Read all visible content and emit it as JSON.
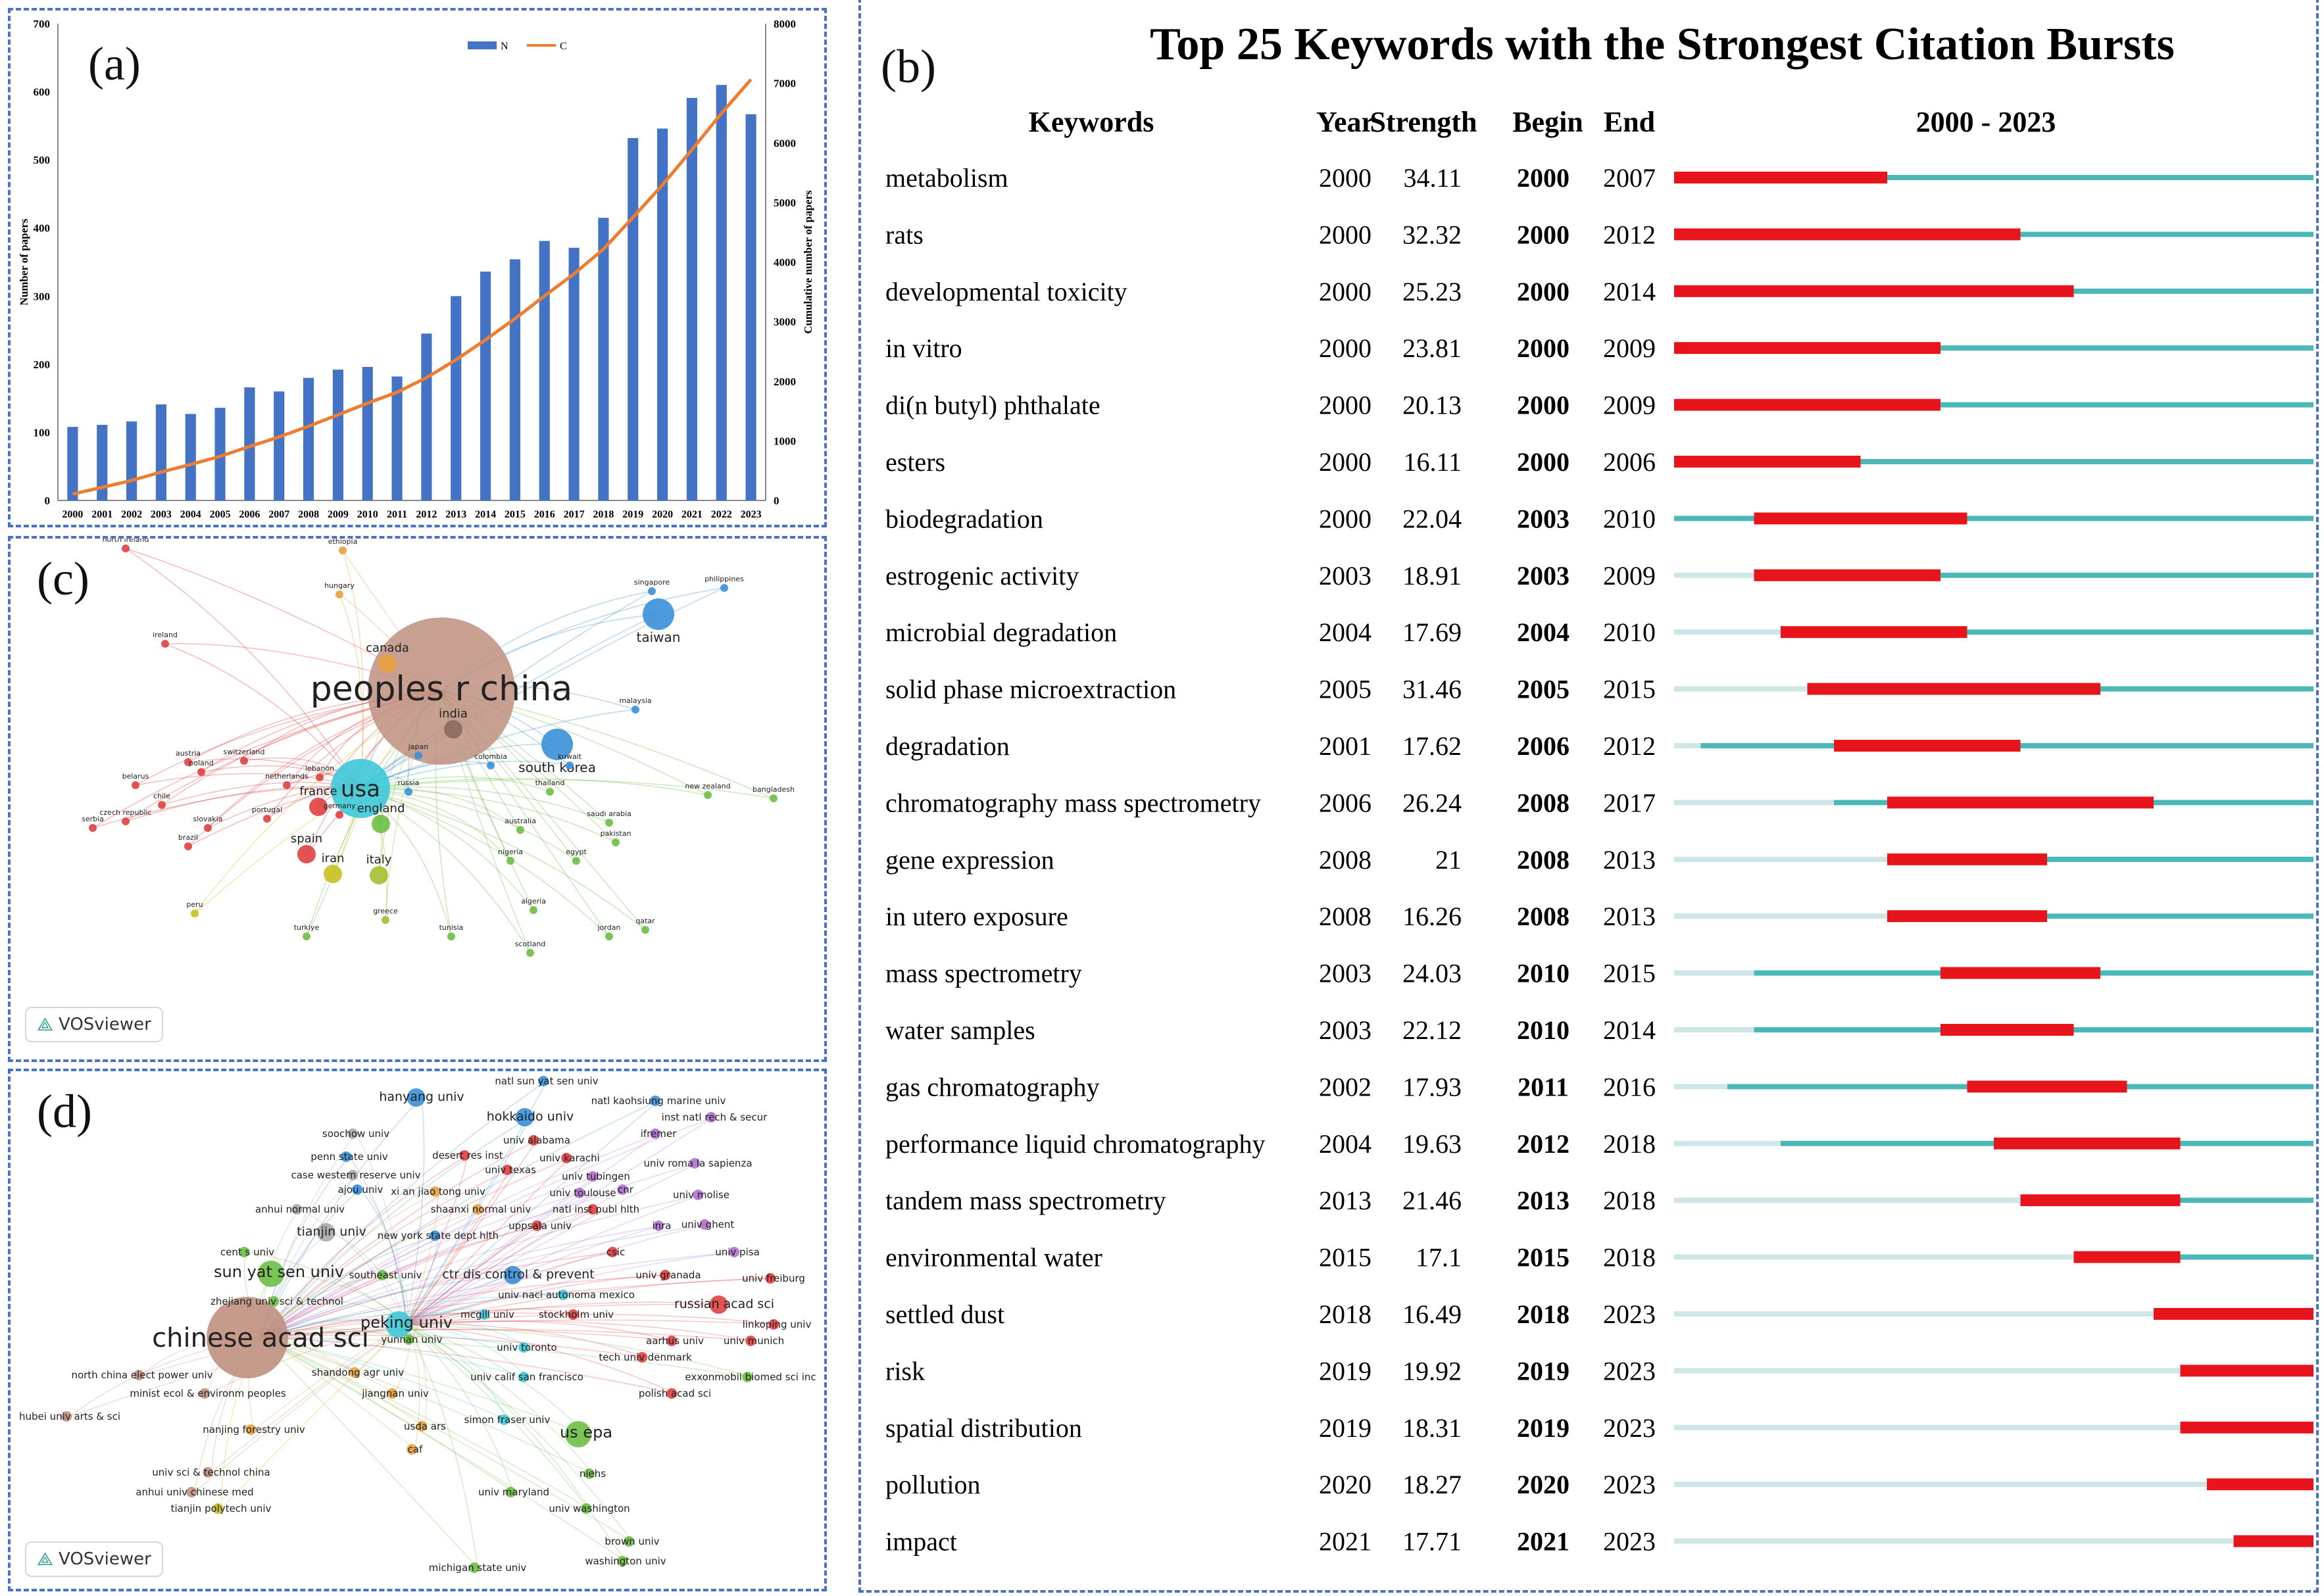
{
  "panels": {
    "a": {
      "label": "(a)"
    },
    "b": {
      "label": "(b)"
    },
    "c": {
      "label": "(c)",
      "badge": "VOSviewer"
    },
    "d": {
      "label": "(d)",
      "badge": "VOSviewer"
    }
  },
  "chart_data": [
    {
      "type": "bar+line",
      "panel": "a",
      "categories": [
        "2000",
        "2001",
        "2002",
        "2003",
        "2004",
        "2005",
        "2006",
        "2007",
        "2008",
        "2009",
        "2010",
        "2011",
        "2012",
        "2013",
        "2014",
        "2015",
        "2016",
        "2017",
        "2018",
        "2019",
        "2020",
        "2021",
        "2022",
        "2023"
      ],
      "series": [
        {
          "name": "N",
          "type": "bar",
          "axis": "left",
          "color": "#4472c4",
          "values": [
            108,
            111,
            116,
            141,
            127,
            136,
            166,
            160,
            180,
            192,
            196,
            182,
            245,
            300,
            336,
            354,
            381,
            371,
            415,
            532,
            546,
            591,
            610,
            567
          ]
        },
        {
          "name": "C",
          "type": "line",
          "axis": "right",
          "color": "#ed7d31",
          "values": [
            108,
            219,
            335,
            476,
            603,
            739,
            905,
            1065,
            1245,
            1437,
            1633,
            1815,
            2060,
            2360,
            2696,
            3050,
            3431,
            3802,
            4217,
            4749,
            5295,
            5886,
            6496,
            7063
          ]
        }
      ],
      "ylabel_left": "Number of papers",
      "ylabel_right": "Cumulative number of papers",
      "ylim_left": [
        0,
        700
      ],
      "ylim_right": [
        0,
        8000
      ],
      "yticks_left": [
        "0",
        "100",
        "200",
        "300",
        "400",
        "500",
        "600",
        "700"
      ],
      "yticks_right": [
        "0",
        "1000",
        "2000",
        "3000",
        "4000",
        "5000",
        "6000",
        "7000",
        "8000"
      ],
      "legend": [
        "N",
        "C"
      ],
      "legend_position": "top-right"
    },
    {
      "type": "table",
      "panel": "b",
      "title": "Top 25 Keywords with the Strongest Citation Bursts",
      "headers": {
        "keyword": "Keywords",
        "year": "Year",
        "strength": "Strength",
        "begin": "Begin",
        "end": "End",
        "range": "2000 - 2023"
      },
      "range_start": 2000,
      "range_end": 2023,
      "rows": [
        {
          "keyword": "metabolism",
          "year": "2000",
          "strength": "34.11",
          "begin": "2000",
          "end": "2007"
        },
        {
          "keyword": "rats",
          "year": "2000",
          "strength": "32.32",
          "begin": "2000",
          "end": "2012"
        },
        {
          "keyword": "developmental toxicity",
          "year": "2000",
          "strength": "25.23",
          "begin": "2000",
          "end": "2014"
        },
        {
          "keyword": "in vitro",
          "year": "2000",
          "strength": "23.81",
          "begin": "2000",
          "end": "2009"
        },
        {
          "keyword": "di(n butyl) phthalate",
          "year": "2000",
          "strength": "20.13",
          "begin": "2000",
          "end": "2009"
        },
        {
          "keyword": "esters",
          "year": "2000",
          "strength": "16.11",
          "begin": "2000",
          "end": "2006"
        },
        {
          "keyword": "biodegradation",
          "year": "2000",
          "strength": "22.04",
          "begin": "2003",
          "end": "2010"
        },
        {
          "keyword": "estrogenic activity",
          "year": "2003",
          "strength": "18.91",
          "begin": "2003",
          "end": "2009"
        },
        {
          "keyword": "microbial degradation",
          "year": "2004",
          "strength": "17.69",
          "begin": "2004",
          "end": "2010"
        },
        {
          "keyword": "solid phase microextraction",
          "year": "2005",
          "strength": "31.46",
          "begin": "2005",
          "end": "2015"
        },
        {
          "keyword": "degradation",
          "year": "2001",
          "strength": "17.62",
          "begin": "2006",
          "end": "2012"
        },
        {
          "keyword": "chromatography mass spectrometry",
          "year": "2006",
          "strength": "26.24",
          "begin": "2008",
          "end": "2017"
        },
        {
          "keyword": "gene expression",
          "year": "2008",
          "strength": "21",
          "begin": "2008",
          "end": "2013"
        },
        {
          "keyword": "in utero exposure",
          "year": "2008",
          "strength": "16.26",
          "begin": "2008",
          "end": "2013"
        },
        {
          "keyword": "mass spectrometry",
          "year": "2003",
          "strength": "24.03",
          "begin": "2010",
          "end": "2015"
        },
        {
          "keyword": "water samples",
          "year": "2003",
          "strength": "22.12",
          "begin": "2010",
          "end": "2014"
        },
        {
          "keyword": "gas chromatography",
          "year": "2002",
          "strength": "17.93",
          "begin": "2011",
          "end": "2016"
        },
        {
          "keyword": "performance liquid chromatography",
          "year": "2004",
          "strength": "19.63",
          "begin": "2012",
          "end": "2018"
        },
        {
          "keyword": "tandem mass spectrometry",
          "year": "2013",
          "strength": "21.46",
          "begin": "2013",
          "end": "2018"
        },
        {
          "keyword": "environmental water",
          "year": "2015",
          "strength": "17.1",
          "begin": "2015",
          "end": "2018"
        },
        {
          "keyword": "settled dust",
          "year": "2018",
          "strength": "16.49",
          "begin": "2018",
          "end": "2023"
        },
        {
          "keyword": "risk",
          "year": "2019",
          "strength": "19.92",
          "begin": "2019",
          "end": "2023"
        },
        {
          "keyword": "spatial distribution",
          "year": "2019",
          "strength": "18.31",
          "begin": "2019",
          "end": "2023"
        },
        {
          "keyword": "pollution",
          "year": "2020",
          "strength": "18.27",
          "begin": "2020",
          "end": "2023"
        },
        {
          "keyword": "impact",
          "year": "2021",
          "strength": "17.71",
          "begin": "2021",
          "end": "2023"
        }
      ],
      "colors": {
        "burst": "#e8141b",
        "active": "#4cb7b7",
        "before": "#cfe6e6"
      }
    }
  ],
  "network_c": {
    "nodes": [
      {
        "label": "peoples r china",
        "color": "#c09080",
        "size": "xl"
      },
      {
        "label": "usa",
        "color": "#3ec8d8",
        "size": "l"
      },
      {
        "label": "india",
        "color": "#8b6a5e",
        "size": "s"
      },
      {
        "label": "south korea",
        "color": "#3a8fd8",
        "size": "m"
      },
      {
        "label": "taiwan",
        "color": "#3a8fd8",
        "size": "m"
      },
      {
        "label": "canada",
        "color": "#e8a040",
        "size": "s"
      },
      {
        "label": "france",
        "color": "#e04040",
        "size": "s"
      },
      {
        "label": "england",
        "color": "#6dbe45",
        "size": "s"
      },
      {
        "label": "spain",
        "color": "#e04040",
        "size": "s"
      },
      {
        "label": "iran",
        "color": "#c8c020",
        "size": "s"
      },
      {
        "label": "italy",
        "color": "#a0c030",
        "size": "s"
      },
      {
        "label": "russia",
        "color": "#3a8fd8",
        "size": "xs"
      },
      {
        "label": "japan",
        "color": "#3a8fd8",
        "size": "xs"
      },
      {
        "label": "germany",
        "color": "#e04040",
        "size": "xs"
      },
      {
        "label": "netherlands",
        "color": "#e04040",
        "size": "xs"
      },
      {
        "label": "australia",
        "color": "#6dbe45",
        "size": "xs"
      },
      {
        "label": "saudi arabia",
        "color": "#6dbe45",
        "size": "xs"
      },
      {
        "label": "pakistan",
        "color": "#6dbe45",
        "size": "xs"
      },
      {
        "label": "egypt",
        "color": "#6dbe45",
        "size": "xs"
      },
      {
        "label": "nigeria",
        "color": "#6dbe45",
        "size": "xs"
      },
      {
        "label": "thailand",
        "color": "#6dbe45",
        "size": "xs"
      },
      {
        "label": "new zealand",
        "color": "#6dbe45",
        "size": "xs"
      },
      {
        "label": "bangladesh",
        "color": "#6dbe45",
        "size": "xs"
      },
      {
        "label": "malaysia",
        "color": "#3a8fd8",
        "size": "xs"
      },
      {
        "label": "singapore",
        "color": "#3a8fd8",
        "size": "xs"
      },
      {
        "label": "philippines",
        "color": "#3a8fd8",
        "size": "xs"
      },
      {
        "label": "kuwait",
        "color": "#3a8fd8",
        "size": "xs"
      },
      {
        "label": "colombia",
        "color": "#3a8fd8",
        "size": "xs"
      },
      {
        "label": "north ireland",
        "color": "#e04040",
        "size": "xs"
      },
      {
        "label": "ethiopia",
        "color": "#e8a040",
        "size": "xs"
      },
      {
        "label": "hungary",
        "color": "#e8a040",
        "size": "xs"
      },
      {
        "label": "ireland",
        "color": "#e04040",
        "size": "xs"
      },
      {
        "label": "austria",
        "color": "#e04040",
        "size": "xs"
      },
      {
        "label": "switzerland",
        "color": "#e04040",
        "size": "xs"
      },
      {
        "label": "poland",
        "color": "#e04040",
        "size": "xs"
      },
      {
        "label": "belarus",
        "color": "#e04040",
        "size": "xs"
      },
      {
        "label": "chile",
        "color": "#e04040",
        "size": "xs"
      },
      {
        "label": "czech republic",
        "color": "#e04040",
        "size": "xs"
      },
      {
        "label": "slovakia",
        "color": "#e04040",
        "size": "xs"
      },
      {
        "label": "serbia",
        "color": "#e04040",
        "size": "xs"
      },
      {
        "label": "brazil",
        "color": "#e04040",
        "size": "xs"
      },
      {
        "label": "portugal",
        "color": "#e04040",
        "size": "xs"
      },
      {
        "label": "lebanon",
        "color": "#e04040",
        "size": "xs"
      },
      {
        "label": "peru",
        "color": "#c8c020",
        "size": "xs"
      },
      {
        "label": "greece",
        "color": "#a0c030",
        "size": "xs"
      },
      {
        "label": "turkiye",
        "color": "#6dbe45",
        "size": "xs"
      },
      {
        "label": "tunisia",
        "color": "#6dbe45",
        "size": "xs"
      },
      {
        "label": "algeria",
        "color": "#6dbe45",
        "size": "xs"
      },
      {
        "label": "scotland",
        "color": "#6dbe45",
        "size": "xs"
      },
      {
        "label": "jordan",
        "color": "#6dbe45",
        "size": "xs"
      },
      {
        "label": "qatar",
        "color": "#6dbe45",
        "size": "xs"
      }
    ]
  },
  "network_d": {
    "nodes": [
      {
        "label": "chinese acad sci",
        "color": "#c09080",
        "size": "xl"
      },
      {
        "label": "peking univ",
        "color": "#3ec8d8",
        "size": "m"
      },
      {
        "label": "sun yat sen univ",
        "color": "#6dbe45",
        "size": "m"
      },
      {
        "label": "tianjin univ",
        "color": "#aaaaaa",
        "size": "s"
      },
      {
        "label": "hanyang univ",
        "color": "#3a8fd8",
        "size": "s"
      },
      {
        "label": "hokkaido univ",
        "color": "#3a8fd8",
        "size": "s"
      },
      {
        "label": "natl sun yat sen univ",
        "color": "#3a8fd8",
        "size": "xs"
      },
      {
        "label": "natl kaohsiung marine univ",
        "color": "#3a8fd8",
        "size": "xs"
      },
      {
        "label": "inst natl rech & secur",
        "color": "#b070d0",
        "size": "xs"
      },
      {
        "label": "ifremer",
        "color": "#b070d0",
        "size": "xs"
      },
      {
        "label": "univ alabama",
        "color": "#e04040",
        "size": "xs"
      },
      {
        "label": "soochow univ",
        "color": "#aaaaaa",
        "size": "xs"
      },
      {
        "label": "univ karachi",
        "color": "#e04040",
        "size": "xs"
      },
      {
        "label": "univ roma la sapienza",
        "color": "#b070d0",
        "size": "xs"
      },
      {
        "label": "penn state univ",
        "color": "#3a8fd8",
        "size": "xs"
      },
      {
        "label": "desert res inst",
        "color": "#e04040",
        "size": "xs"
      },
      {
        "label": "univ texas",
        "color": "#e04040",
        "size": "xs"
      },
      {
        "label": "case western reserve univ",
        "color": "#aaaaaa",
        "size": "xs"
      },
      {
        "label": "univ tubingen",
        "color": "#b070d0",
        "size": "xs"
      },
      {
        "label": "ajou univ",
        "color": "#3a8fd8",
        "size": "xs"
      },
      {
        "label": "xi an jiao tong univ",
        "color": "#e8a040",
        "size": "xs"
      },
      {
        "label": "univ toulouse",
        "color": "#b070d0",
        "size": "xs"
      },
      {
        "label": "cnr",
        "color": "#b070d0",
        "size": "xs"
      },
      {
        "label": "univ molise",
        "color": "#b070d0",
        "size": "xs"
      },
      {
        "label": "anhui normal univ",
        "color": "#aaaaaa",
        "size": "xs"
      },
      {
        "label": "shaanxi normal univ",
        "color": "#e8a040",
        "size": "xs"
      },
      {
        "label": "natl inst publ hlth",
        "color": "#e04040",
        "size": "xs"
      },
      {
        "label": "inra",
        "color": "#b070d0",
        "size": "xs"
      },
      {
        "label": "univ ghent",
        "color": "#b070d0",
        "size": "xs"
      },
      {
        "label": "uppsala univ",
        "color": "#e04040",
        "size": "xs"
      },
      {
        "label": "new york state dept hlth",
        "color": "#3a8fd8",
        "size": "xs"
      },
      {
        "label": "cent s univ",
        "color": "#6dbe45",
        "size": "xs"
      },
      {
        "label": "csic",
        "color": "#e04040",
        "size": "xs"
      },
      {
        "label": "univ pisa",
        "color": "#b070d0",
        "size": "xs"
      },
      {
        "label": "southeast univ",
        "color": "#6dbe45",
        "size": "xs"
      },
      {
        "label": "ctr dis control & prevent",
        "color": "#3a8fd8",
        "size": "s"
      },
      {
        "label": "univ granada",
        "color": "#e04040",
        "size": "xs"
      },
      {
        "label": "univ freiburg",
        "color": "#e04040",
        "size": "xs"
      },
      {
        "label": "univ nacl autonoma mexico",
        "color": "#3ec8d8",
        "size": "xs"
      },
      {
        "label": "russian acad sci",
        "color": "#e04040",
        "size": "s"
      },
      {
        "label": "zhejiang univ sci & technol",
        "color": "#6dbe45",
        "size": "xs"
      },
      {
        "label": "mcgill univ",
        "color": "#3ec8d8",
        "size": "xs"
      },
      {
        "label": "stockholm univ",
        "color": "#e04040",
        "size": "xs"
      },
      {
        "label": "linkoping univ",
        "color": "#e04040",
        "size": "xs"
      },
      {
        "label": "yunnan univ",
        "color": "#6dbe45",
        "size": "xs"
      },
      {
        "label": "aarhus univ",
        "color": "#e04040",
        "size": "xs"
      },
      {
        "label": "univ munich",
        "color": "#e04040",
        "size": "xs"
      },
      {
        "label": "univ toronto",
        "color": "#3ec8d8",
        "size": "xs"
      },
      {
        "label": "tech univ denmark",
        "color": "#e04040",
        "size": "xs"
      },
      {
        "label": "shandong agr univ",
        "color": "#e8a040",
        "size": "xs"
      },
      {
        "label": "north china elect power univ",
        "color": "#c09080",
        "size": "xs"
      },
      {
        "label": "exxonmobil biomed sci inc",
        "color": "#6dbe45",
        "size": "xs"
      },
      {
        "label": "minist ecol & environm peoples",
        "color": "#c09080",
        "size": "xs"
      },
      {
        "label": "jiangnan univ",
        "color": "#e8a040",
        "size": "xs"
      },
      {
        "label": "univ calif san francisco",
        "color": "#3ec8d8",
        "size": "xs"
      },
      {
        "label": "polish acad sci",
        "color": "#e04040",
        "size": "xs"
      },
      {
        "label": "hubei univ arts & sci",
        "color": "#c09080",
        "size": "xs"
      },
      {
        "label": "nanjing forestry univ",
        "color": "#e8a040",
        "size": "xs"
      },
      {
        "label": "usda ars",
        "color": "#e8a040",
        "size": "xs"
      },
      {
        "label": "simon fraser univ",
        "color": "#3ec8d8",
        "size": "xs"
      },
      {
        "label": "us epa",
        "color": "#6dbe45",
        "size": "m"
      },
      {
        "label": "caf",
        "color": "#e8a040",
        "size": "xs"
      },
      {
        "label": "univ sci & technol china",
        "color": "#c09080",
        "size": "xs"
      },
      {
        "label": "niehs",
        "color": "#6dbe45",
        "size": "xs"
      },
      {
        "label": "anhui univ chinese med",
        "color": "#c09080",
        "size": "xs"
      },
      {
        "label": "univ maryland",
        "color": "#6dbe45",
        "size": "xs"
      },
      {
        "label": "tianjin polytech univ",
        "color": "#c8c020",
        "size": "xs"
      },
      {
        "label": "univ washington",
        "color": "#6dbe45",
        "size": "xs"
      },
      {
        "label": "brown univ",
        "color": "#6dbe45",
        "size": "xs"
      },
      {
        "label": "michigan state univ",
        "color": "#6dbe45",
        "size": "xs"
      },
      {
        "label": "washington univ",
        "color": "#6dbe45",
        "size": "xs"
      }
    ]
  }
}
